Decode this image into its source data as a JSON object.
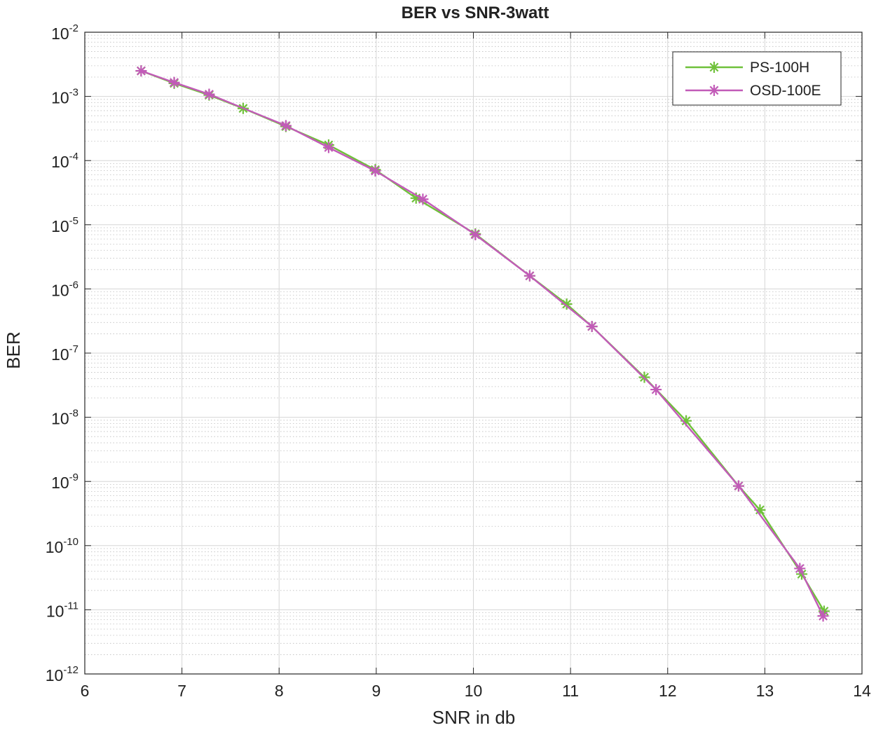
{
  "chart_data": {
    "type": "line",
    "title": "BER vs SNR-3watt",
    "xlabel": "SNR in db",
    "ylabel": "BER",
    "xlim": [
      6,
      14
    ],
    "ylim": [
      1e-12,
      0.01
    ],
    "yscale": "log",
    "grid": true,
    "minor_grid": true,
    "legend_position": "top-right",
    "x_ticks": [
      {
        "value": 6,
        "label": "6"
      },
      {
        "value": 7,
        "label": "7"
      },
      {
        "value": 8,
        "label": "8"
      },
      {
        "value": 9,
        "label": "9"
      },
      {
        "value": 10,
        "label": "10"
      },
      {
        "value": 11,
        "label": "11"
      },
      {
        "value": 12,
        "label": "12"
      },
      {
        "value": 13,
        "label": "13"
      },
      {
        "value": 14,
        "label": "14"
      }
    ],
    "y_ticks": [
      {
        "exp": -2,
        "base": "10",
        "sup": "-2"
      },
      {
        "exp": -3,
        "base": "10",
        "sup": "-3"
      },
      {
        "exp": -4,
        "base": "10",
        "sup": "-4"
      },
      {
        "exp": -5,
        "base": "10",
        "sup": "-5"
      },
      {
        "exp": -6,
        "base": "10",
        "sup": "-6"
      },
      {
        "exp": -7,
        "base": "10",
        "sup": "-7"
      },
      {
        "exp": -8,
        "base": "10",
        "sup": "-8"
      },
      {
        "exp": -9,
        "base": "10",
        "sup": "-9"
      },
      {
        "exp": -10,
        "base": "10",
        "sup": "-10"
      },
      {
        "exp": -11,
        "base": "10",
        "sup": "-11"
      },
      {
        "exp": -12,
        "base": "10",
        "sup": "-12"
      }
    ],
    "series": [
      {
        "name": "PS-100H",
        "color": "#6fc13a",
        "marker": "asterisk",
        "points": [
          [
            6.58,
            0.0025
          ],
          [
            6.92,
            0.0016
          ],
          [
            7.28,
            0.00105
          ],
          [
            7.63,
            0.00065
          ],
          [
            8.07,
            0.00034
          ],
          [
            8.51,
            0.000175
          ],
          [
            8.99,
            7.2e-05
          ],
          [
            9.41,
            2.6e-05
          ],
          [
            10.02,
            7.2e-06
          ],
          [
            10.58,
            1.6e-06
          ],
          [
            10.96,
            5.8e-07
          ],
          [
            11.22,
            2.6e-07
          ],
          [
            11.76,
            4.2e-08
          ],
          [
            12.19,
            8.8e-09
          ],
          [
            12.73,
            8.5e-10
          ],
          [
            12.95,
            3.6e-10
          ],
          [
            13.38,
            3.6e-11
          ],
          [
            13.61,
            9.5e-12
          ]
        ]
      },
      {
        "name": "OSD-100E",
        "color": "#c25bb8",
        "marker": "asterisk",
        "points": [
          [
            6.58,
            0.0025
          ],
          [
            6.92,
            0.00165
          ],
          [
            7.28,
            0.00108
          ],
          [
            8.07,
            0.00035
          ],
          [
            8.51,
            0.00016
          ],
          [
            8.99,
            6.9e-05
          ],
          [
            9.48,
            2.5e-05
          ],
          [
            10.02,
            7e-06
          ],
          [
            10.58,
            1.6e-06
          ],
          [
            11.22,
            2.6e-07
          ],
          [
            11.88,
            2.7e-08
          ],
          [
            12.73,
            8.5e-10
          ],
          [
            13.36,
            4.4e-11
          ],
          [
            13.6,
            8e-12
          ]
        ]
      }
    ]
  }
}
